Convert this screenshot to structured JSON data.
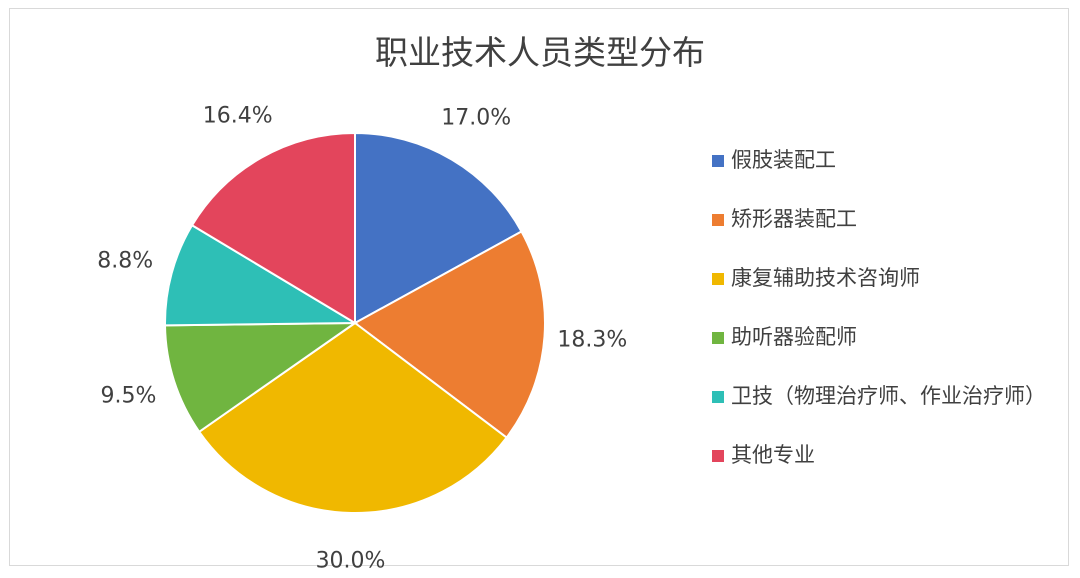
{
  "chart_data": {
    "type": "pie",
    "title": "职业技术人员类型分布",
    "categories": [
      "假肢装配工",
      "矫形器装配工",
      "康复辅助技术咨询师",
      "助听器验配师",
      "卫技（物理治疗师、作业治疗师）",
      "其他专业"
    ],
    "values": [
      17.0,
      18.3,
      30.0,
      9.5,
      8.8,
      16.4
    ],
    "labels": [
      "17.0%",
      "18.3%",
      "30.0%",
      "9.5%",
      "8.8%",
      "16.4%"
    ],
    "colors": [
      "#4472c4",
      "#ed7d31",
      "#f0b800",
      "#70b540",
      "#2ebfb6",
      "#e3455c"
    ],
    "legend_position": "right"
  }
}
